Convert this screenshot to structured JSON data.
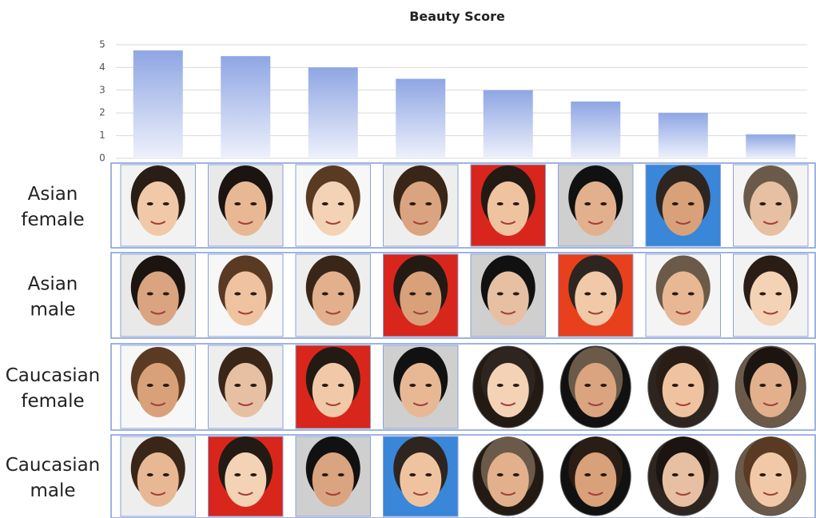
{
  "chart_data": {
    "type": "bar",
    "title": "Beauty Score",
    "values": [
      4.75,
      4.5,
      4.0,
      3.5,
      3.0,
      2.5,
      2.0,
      1.05
    ],
    "color": "#8fa6e4",
    "ylim": [
      0,
      5
    ],
    "yticks": [
      0,
      1,
      2,
      3,
      4,
      5
    ],
    "grid": true,
    "row_labels": [
      [
        "Asian",
        "female"
      ],
      [
        "Asian",
        "male"
      ],
      [
        "Caucasian",
        "female"
      ],
      [
        "Caucasian",
        "male"
      ]
    ]
  }
}
